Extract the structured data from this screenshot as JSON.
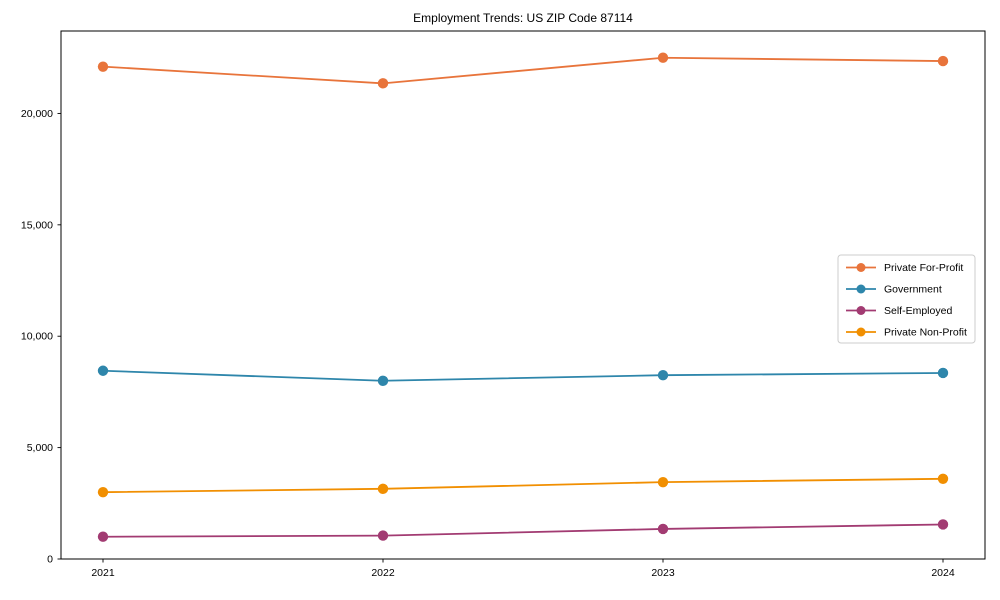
{
  "chart_data": {
    "type": "line",
    "title": "Employment Trends: US ZIP Code 87114",
    "xlabel": "",
    "ylabel": "",
    "x": [
      2021,
      2022,
      2023,
      2024
    ],
    "xtick_labels": [
      "2021",
      "2022",
      "2023",
      "2024"
    ],
    "yticks": [
      0,
      5000,
      10000,
      15000,
      20000
    ],
    "ytick_labels": [
      "0",
      "5,000",
      "10,000",
      "15,000",
      "20,000"
    ],
    "xlim": [
      2020.85,
      2024.15
    ],
    "ylim": [
      0,
      23700
    ],
    "grid": false,
    "legend_position": "center-right",
    "series": [
      {
        "id": "private-for-profit",
        "name": "Private For-Profit",
        "color": "#E8743B",
        "values": [
          22100,
          21350,
          22500,
          22350
        ]
      },
      {
        "id": "government",
        "name": "Government",
        "color": "#2E86AB",
        "values": [
          8450,
          8000,
          8250,
          8350
        ]
      },
      {
        "id": "self-employed",
        "name": "Self-Employed",
        "color": "#A23B72",
        "values": [
          1000,
          1050,
          1350,
          1550
        ]
      },
      {
        "id": "private-non-profit",
        "name": "Private Non-Profit",
        "color": "#F18F01",
        "values": [
          3000,
          3150,
          3450,
          3600
        ]
      }
    ]
  }
}
